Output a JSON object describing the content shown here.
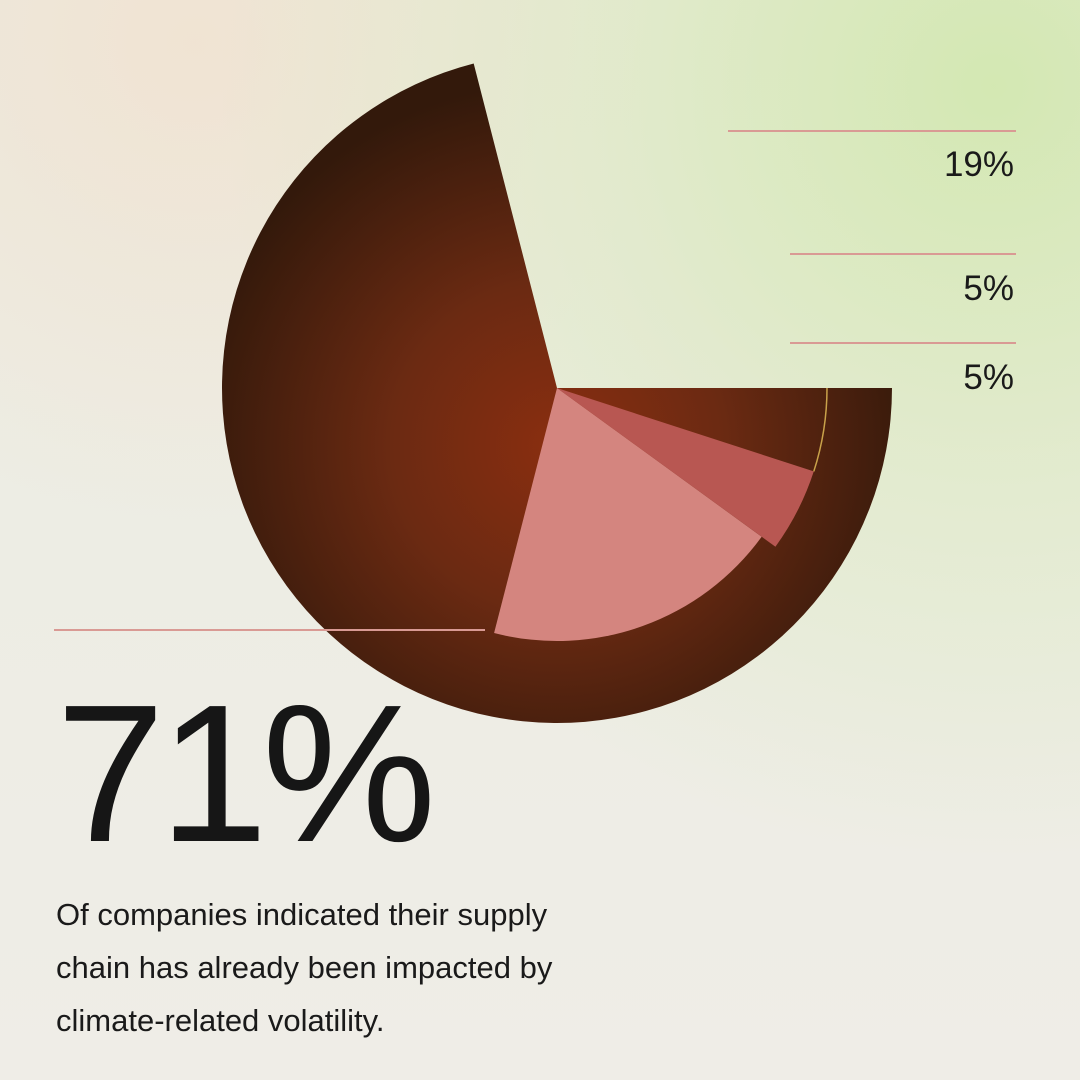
{
  "chart_data": {
    "type": "pie",
    "start_angle_deg": 0,
    "direction": "counterclockwise",
    "slices": [
      {
        "label": "71%",
        "value": 71,
        "color": "#6a2a10"
      },
      {
        "label": "19%",
        "value": 19,
        "color": "#d4857f"
      },
      {
        "label": "5%",
        "value": 5,
        "color": "#b85752"
      },
      {
        "label": "5%",
        "value": 5,
        "color": "none"
      }
    ]
  },
  "headline": {
    "value": "71%",
    "caption": "Of companies indicated their supply chain has already been impacted by climate-related volatility."
  },
  "colors": {
    "leader_line": "#d99a94",
    "missing_slice_outline": "#c9a24a",
    "text": "#161616"
  }
}
